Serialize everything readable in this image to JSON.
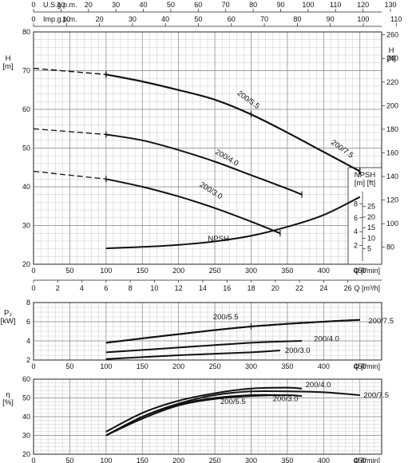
{
  "chart_data": [
    {
      "type": "line",
      "title": "",
      "top_axes": [
        {
          "label": "U.S.g.p.m.",
          "ticks": [
            "0",
            "10",
            "20",
            "30",
            "40",
            "50",
            "60",
            "70",
            "80",
            "90",
            "100",
            "110",
            "120",
            "130"
          ]
        },
        {
          "label": "Imp.g.p.m.",
          "ticks": [
            "0",
            "10",
            "20",
            "30",
            "40",
            "50",
            "60",
            "70",
            "80",
            "90",
            "100",
            "110"
          ]
        }
      ],
      "ylabel": "H\n[m]",
      "ylabel_right": "H\n[ft]",
      "xlabel": "Q  [l/min]",
      "xlabel2": "Q  [m³/h]",
      "xlim": [
        0,
        480
      ],
      "ylim": [
        20,
        80
      ],
      "x_ticks": [
        0,
        50,
        100,
        150,
        200,
        250,
        300,
        350,
        400,
        450
      ],
      "y_ticks": [
        20,
        30,
        40,
        50,
        60,
        70,
        80
      ],
      "y_right_ticks": [
        80,
        100,
        120,
        140,
        160,
        180,
        200,
        220,
        240,
        260
      ],
      "m3h_ticks": [
        0,
        2,
        4,
        6,
        8,
        10,
        12,
        14,
        16,
        18,
        20,
        22,
        24,
        26
      ],
      "grid": true,
      "series": [
        {
          "name": "200/7.5",
          "dashed_until": 100,
          "x": [
            0,
            100,
            150,
            200,
            250,
            300,
            350,
            400,
            450
          ],
          "y": [
            70.6,
            69,
            67.2,
            65,
            62.5,
            58.7,
            54,
            49,
            44
          ]
        },
        {
          "name": "200/5.5",
          "dashed_until": 100,
          "x": [
            0,
            100,
            150,
            200,
            250,
            300,
            350,
            400,
            450
          ],
          "y": [
            70.6,
            69,
            67.2,
            65,
            62.5,
            58.7,
            54,
            49,
            44
          ]
        },
        {
          "name": "200/4.0",
          "dashed_until": 100,
          "x": [
            0,
            100,
            150,
            200,
            250,
            300,
            350,
            370
          ],
          "y": [
            55,
            53.5,
            52,
            49.5,
            46.5,
            43,
            39.5,
            38
          ]
        },
        {
          "name": "200/3.0",
          "dashed_until": 100,
          "x": [
            0,
            100,
            150,
            200,
            250,
            300,
            340
          ],
          "y": [
            44,
            42,
            40,
            37.5,
            34.5,
            31,
            28
          ]
        },
        {
          "name": "NPSH",
          "axis": "npsh",
          "x": [
            100,
            150,
            200,
            250,
            300,
            350,
            400,
            450
          ],
          "y": [
            1.6,
            1.8,
            2.1,
            2.6,
            3.4,
            4.7,
            6.4,
            9.0
          ]
        }
      ],
      "npsh_axis": {
        "label": "NPSH\n[m] [ft]",
        "m_ticks": [
          2,
          4,
          6,
          8
        ],
        "ft_ticks": [
          5,
          10,
          15,
          20,
          25
        ]
      }
    },
    {
      "type": "line",
      "ylabel": "P₂\n[kW]",
      "xlabel": "Q  [l/min]",
      "xlim": [
        0,
        480
      ],
      "ylim": [
        2,
        8
      ],
      "x_ticks": [
        0,
        50,
        100,
        150,
        200,
        250,
        300,
        350,
        400,
        450
      ],
      "y_ticks": [
        2,
        4,
        6,
        8
      ],
      "grid": true,
      "series": [
        {
          "name": "200/5.5",
          "x": [
            100,
            200,
            300,
            400,
            450
          ],
          "y": [
            3.8,
            4.7,
            5.5,
            6.0,
            6.2
          ]
        },
        {
          "name": "200/7.5",
          "x": [
            100,
            200,
            300,
            400,
            450
          ],
          "y": [
            3.8,
            4.7,
            5.5,
            6.0,
            6.2
          ]
        },
        {
          "name": "200/4.0",
          "x": [
            100,
            200,
            300,
            370
          ],
          "y": [
            2.8,
            3.3,
            3.8,
            4.0
          ]
        },
        {
          "name": "200/3.0",
          "x": [
            100,
            200,
            300,
            340
          ],
          "y": [
            2.1,
            2.5,
            2.8,
            3.0
          ]
        }
      ]
    },
    {
      "type": "line",
      "ylabel": "η\n[%]",
      "xlabel": "Q  [l/min]",
      "xlim": [
        0,
        480
      ],
      "ylim": [
        20,
        60
      ],
      "x_ticks": [
        0,
        50,
        100,
        150,
        200,
        250,
        300,
        350,
        400,
        450
      ],
      "y_ticks": [
        20,
        30,
        40,
        50,
        60
      ],
      "grid": true,
      "series": [
        {
          "name": "200/4.0",
          "x": [
            100,
            150,
            200,
            250,
            300,
            350,
            370
          ],
          "y": [
            32,
            42,
            48.5,
            52.5,
            55,
            55.5,
            55
          ]
        },
        {
          "name": "200/7.5",
          "x": [
            100,
            150,
            200,
            250,
            300,
            350,
            400,
            450
          ],
          "y": [
            30,
            40,
            47,
            51.5,
            53.5,
            53.5,
            53,
            51.5
          ]
        },
        {
          "name": "200/5.5",
          "x": [
            100,
            150,
            200,
            250,
            300,
            350,
            370
          ],
          "y": [
            30,
            39,
            46,
            49.5,
            51,
            51.5,
            51
          ]
        },
        {
          "name": "200/3.0",
          "x": [
            100,
            150,
            200,
            250,
            300,
            340
          ],
          "y": [
            30,
            40,
            46.5,
            50,
            51.5,
            51.5
          ]
        }
      ]
    }
  ]
}
